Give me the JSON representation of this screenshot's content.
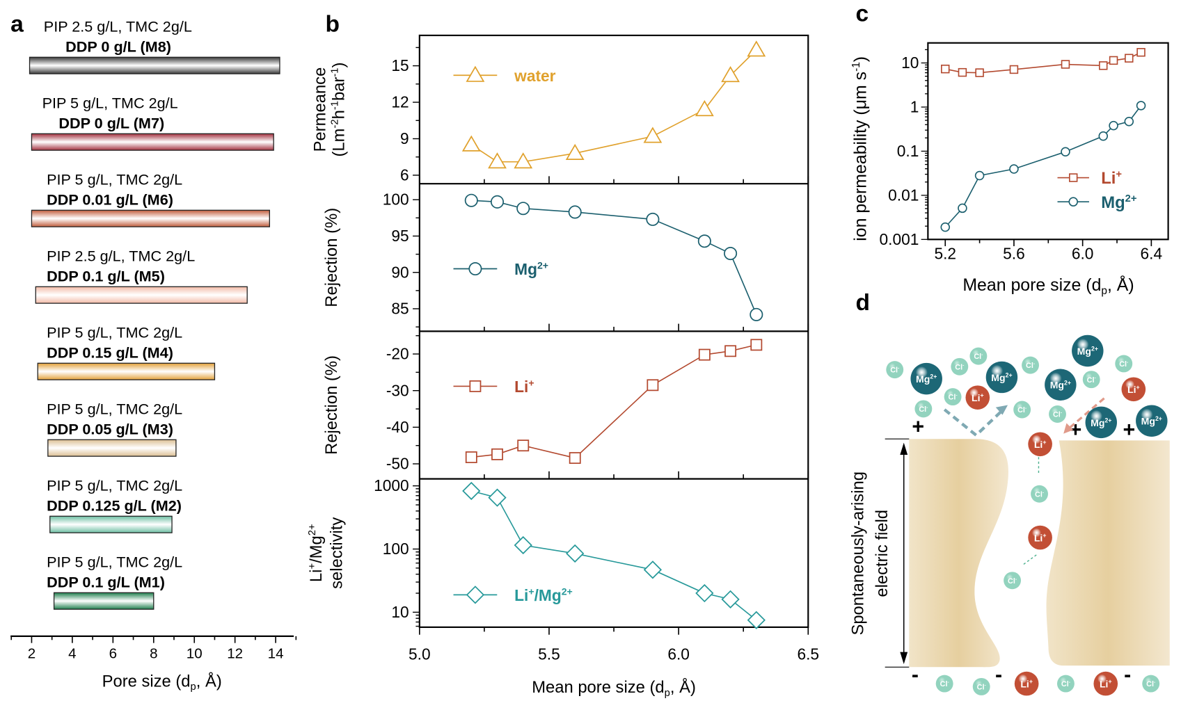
{
  "panel_labels": {
    "a": "a",
    "b": "b",
    "c": "c",
    "d": "d"
  },
  "colors": {
    "water": "#e0a12c",
    "mg": "#1b5f6e",
    "li": "#b3492f",
    "selectivity": "#27999a",
    "mg_ion": "#1d6776",
    "li_ion": "#c24f35",
    "cl_ion": "#92d3be",
    "membrane": "#e6cf9f"
  },
  "chart_data": [
    {
      "panel": "a",
      "type": "bar",
      "orientation": "horizontal-range",
      "xlabel": "Pore size (d_{p}, Å)",
      "xlim": [
        1,
        15
      ],
      "xticks": [
        2,
        4,
        6,
        8,
        10,
        12,
        14
      ],
      "categories": [
        {
          "id": "M8",
          "line1": "PIP 2.5 g/L, TMC 2g/L",
          "line2": "DDP 0 g/L (M8)",
          "range": [
            1.9,
            14.2
          ],
          "color": "#3a3a3a"
        },
        {
          "id": "M7",
          "line1": "PIP 5 g/L, TMC 2g/L",
          "line2": "DDP 0 g/L (M7)",
          "range": [
            2.0,
            13.9
          ],
          "color": "#a3313f"
        },
        {
          "id": "M6",
          "line1": "PIP 5 g/L, TMC 2g/L",
          "line2": "DDP 0.01 g/L (M6)",
          "range": [
            2.0,
            13.7
          ],
          "color": "#c15d3c"
        },
        {
          "id": "M5",
          "line1": "PIP 2.5 g/L, TMC 2g/L",
          "line2": "DDP 0.1 g/L (M5)",
          "range": [
            2.2,
            12.6
          ],
          "color": "#f3bba8"
        },
        {
          "id": "M4",
          "line1": "PIP 5 g/L, TMC 2g/L",
          "line2": "DDP 0.15 g/L (M4)",
          "range": [
            2.3,
            11.0
          ],
          "color": "#e3a13a"
        },
        {
          "id": "M3",
          "line1": "PIP 5 g/L, TMC 2g/L",
          "line2": "DDP 0.05 g/L (M3)",
          "range": [
            2.8,
            9.1
          ],
          "color": "#dcbf93"
        },
        {
          "id": "M2",
          "line1": "PIP 5 g/L, TMC 2g/L",
          "line2": "DDP 0.125 g/L (M2)",
          "range": [
            2.9,
            8.9
          ],
          "color": "#6dbfa3"
        },
        {
          "id": "M1",
          "line1": "PIP 5 g/L, TMC 2g/L",
          "line2": "DDP 0.1 g/L (M1)",
          "range": [
            3.1,
            8.0
          ],
          "color": "#1f7f4e"
        }
      ]
    },
    {
      "panel": "b",
      "type": "line",
      "xlabel": "Mean pore size (d_{p}, Å)",
      "xlim": [
        5.0,
        6.5
      ],
      "xticks": [
        5.0,
        5.5,
        6.0,
        6.5
      ],
      "x": [
        5.2,
        5.3,
        5.4,
        5.6,
        5.9,
        6.1,
        6.2,
        6.3
      ],
      "subplots": [
        {
          "ylabel": [
            "Permeance",
            "(Lm^{-2}h^{-1}bar^{-1})"
          ],
          "ylim": [
            5.3,
            17.5
          ],
          "yticks": [
            6,
            9,
            12,
            15
          ],
          "scale": "linear",
          "series": {
            "name": "water",
            "marker": "triangle",
            "values": [
              8.5,
              7.1,
              7.1,
              7.8,
              9.2,
              11.4,
              14.2,
              16.3
            ]
          }
        },
        {
          "ylabel": [
            "Rejection (%)"
          ],
          "ylim": [
            81.9,
            102.2
          ],
          "yticks": [
            85,
            90,
            95,
            100
          ],
          "scale": "linear",
          "series": {
            "name": "Mg^{2+}",
            "marker": "circle",
            "values": [
              99.9,
              99.7,
              98.8,
              98.3,
              97.3,
              94.3,
              92.6,
              84.2
            ]
          }
        },
        {
          "ylabel": [
            "Rejection (%)"
          ],
          "ylim": [
            -54.1,
            -13.8
          ],
          "yticks": [
            -50,
            -40,
            -30,
            -20
          ],
          "scale": "linear",
          "series": {
            "name": "Li^{+}",
            "marker": "square",
            "values": [
              -48.2,
              -47.4,
              -45.0,
              -48.4,
              -28.5,
              -20.2,
              -19.2,
              -17.5
            ]
          }
        },
        {
          "ylabel": [
            "Li^{+}/Mg^{2+}",
            "selectivity"
          ],
          "ylim": [
            5.8,
            1290
          ],
          "yticks": [
            10,
            100,
            1000
          ],
          "scale": "log",
          "series": {
            "name": "Li^{+}/Mg^{2+}",
            "marker": "diamond",
            "values": [
              830,
              650,
              115,
              85,
              47,
              20,
              16,
              7.5
            ]
          }
        }
      ]
    },
    {
      "panel": "c",
      "type": "line",
      "xlabel": "Mean pore size (d_{p}, Å)",
      "ylabel": "ion permeability (μm s^{-1})",
      "xlim": [
        5.1,
        6.5
      ],
      "xticks": [
        "5.2",
        "5.6",
        "6.0",
        "6.4"
      ],
      "ylim": [
        0.001,
        28.6
      ],
      "yscale": "log",
      "yticks": [
        "0.001",
        "0.01",
        "0.1",
        "1",
        "10"
      ],
      "legend": "bottom-right",
      "x": [
        5.2,
        5.3,
        5.4,
        5.6,
        5.9,
        6.12,
        6.18,
        6.27,
        6.34
      ],
      "series": [
        {
          "name": "Li^{+}",
          "marker": "square",
          "values": [
            7.3,
            6.1,
            6.0,
            7.1,
            9.3,
            8.7,
            11.4,
            12.8,
            17.4
          ]
        },
        {
          "name": "Mg^{2+}",
          "marker": "circle",
          "values": [
            0.0019,
            0.0051,
            0.028,
            0.0395,
            0.097,
            0.22,
            0.38,
            0.47,
            1.08
          ]
        }
      ]
    }
  ],
  "illustration": {
    "ion_labels": {
      "mg": "Mg^{2+}",
      "li": "Li^{+}",
      "cl": "Cl^{-}"
    },
    "field_label": [
      "Spontaneously-arising",
      "electric field"
    ],
    "plus": "+",
    "minus": "-"
  }
}
